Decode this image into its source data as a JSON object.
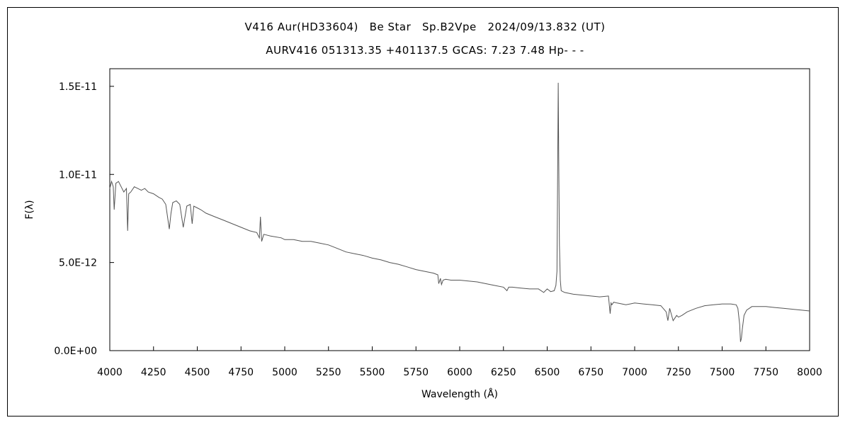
{
  "chart_data": {
    "type": "line",
    "title": "V416 Aur(HD33604)   Be Star   Sp.B2Vpe   2024/09/13.832 (UT)",
    "subtitle": "AURV416 051313.35 +401137.5 GCAS: 7.23 7.48 Hp- - -",
    "xlabel": "Wavelength (Å)",
    "ylabel": "F(λ)",
    "xlim": [
      4000,
      8000
    ],
    "ylim": [
      0,
      1.6e-11
    ],
    "xticks": [
      "4000",
      "4250",
      "4500",
      "4750",
      "5000",
      "5250",
      "5500",
      "5750",
      "6000",
      "6250",
      "6500",
      "6750",
      "7000",
      "7250",
      "7500",
      "7750",
      "8000"
    ],
    "yticks": [
      {
        "value": 0,
        "label": "0.0E+00"
      },
      {
        "value": 5e-12,
        "label": "5.0E-12"
      },
      {
        "value": 1e-11,
        "label": "1.0E-11"
      },
      {
        "value": 1.5e-11,
        "label": "1.5E-11"
      }
    ],
    "grid": false,
    "line_color": "#555555",
    "series": [
      {
        "x": [
          4000,
          4010,
          4020,
          4025,
          4035,
          4050,
          4060,
          4080,
          4095,
          4102,
          4108,
          4120,
          4140,
          4160,
          4180,
          4200,
          4220,
          4250,
          4280,
          4300,
          4320,
          4330,
          4340,
          4350,
          4360,
          4380,
          4400,
          4420,
          4440,
          4460,
          4471,
          4480,
          4500,
          4520,
          4550,
          4600,
          4650,
          4700,
          4750,
          4800,
          4840,
          4855,
          4861,
          4868,
          4880,
          4920,
          4980,
          5000,
          5050,
          5100,
          5150,
          5200,
          5250,
          5300,
          5350,
          5400,
          5450,
          5500,
          5550,
          5600,
          5650,
          5700,
          5750,
          5800,
          5850,
          5875,
          5880,
          5890,
          5896,
          5905,
          5920,
          5950,
          6000,
          6050,
          6100,
          6150,
          6200,
          6250,
          6270,
          6280,
          6300,
          6350,
          6400,
          6450,
          6480,
          6500,
          6520,
          6540,
          6550,
          6556,
          6559,
          6563,
          6566,
          6570,
          6575,
          6580,
          6600,
          6650,
          6700,
          6750,
          6800,
          6850,
          6860,
          6865,
          6870,
          6880,
          6900,
          6950,
          7000,
          7050,
          7100,
          7150,
          7180,
          7190,
          7200,
          7220,
          7240,
          7250,
          7270,
          7300,
          7350,
          7400,
          7450,
          7500,
          7550,
          7580,
          7590,
          7600,
          7605,
          7610,
          7615,
          7625,
          7640,
          7670,
          7700,
          7750,
          7800,
          7850,
          7900,
          7950,
          8000
        ],
        "y": [
          9.2e-12,
          9.6e-12,
          9.3e-12,
          8e-12,
          9.5e-12,
          9.6e-12,
          9.4e-12,
          9e-12,
          9.2e-12,
          6.8e-12,
          8.9e-12,
          9e-12,
          9.3e-12,
          9.2e-12,
          9.1e-12,
          9.2e-12,
          9e-12,
          8.9e-12,
          8.7e-12,
          8.6e-12,
          8.3e-12,
          7.6e-12,
          6.9e-12,
          7.8e-12,
          8.4e-12,
          8.5e-12,
          8.3e-12,
          7e-12,
          8.2e-12,
          8.3e-12,
          7.2e-12,
          8.2e-12,
          8.1e-12,
          8e-12,
          7.8e-12,
          7.6e-12,
          7.4e-12,
          7.2e-12,
          7e-12,
          6.8e-12,
          6.7e-12,
          6.4e-12,
          7.6e-12,
          6.2e-12,
          6.6e-12,
          6.5e-12,
          6.4e-12,
          6.3e-12,
          6.3e-12,
          6.2e-12,
          6.2e-12,
          6.1e-12,
          6e-12,
          5.8e-12,
          5.6e-12,
          5.5e-12,
          5.4e-12,
          5.25e-12,
          5.15e-12,
          5e-12,
          4.9e-12,
          4.75e-12,
          4.6e-12,
          4.5e-12,
          4.4e-12,
          4.3e-12,
          3.8e-12,
          4.1e-12,
          3.75e-12,
          4e-12,
          4.05e-12,
          4e-12,
          4e-12,
          3.95e-12,
          3.9e-12,
          3.8e-12,
          3.7e-12,
          3.6e-12,
          3.4e-12,
          3.6e-12,
          3.6e-12,
          3.55e-12,
          3.5e-12,
          3.5e-12,
          3.3e-12,
          3.5e-12,
          3.35e-12,
          3.4e-12,
          3.7e-12,
          4.5e-12,
          9e-12,
          1.52e-11,
          1.1e-11,
          6e-12,
          4e-12,
          3.4e-12,
          3.3e-12,
          3.2e-12,
          3.15e-12,
          3.1e-12,
          3.05e-12,
          3.1e-12,
          2.1e-12,
          2.7e-12,
          2.6e-12,
          2.75e-12,
          2.7e-12,
          2.6e-12,
          2.7e-12,
          2.65e-12,
          2.6e-12,
          2.55e-12,
          2.2e-12,
          1.7e-12,
          2.4e-12,
          1.7e-12,
          2e-12,
          1.9e-12,
          2e-12,
          2.2e-12,
          2.4e-12,
          2.55e-12,
          2.6e-12,
          2.65e-12,
          2.65e-12,
          2.6e-12,
          2.4e-12,
          1.5e-12,
          5e-13,
          7e-13,
          1.2e-12,
          2e-12,
          2.3e-12,
          2.5e-12,
          2.5e-12,
          2.5e-12,
          2.45e-12,
          2.4e-12,
          2.35e-12,
          2.3e-12,
          2.25e-12
        ]
      }
    ]
  }
}
